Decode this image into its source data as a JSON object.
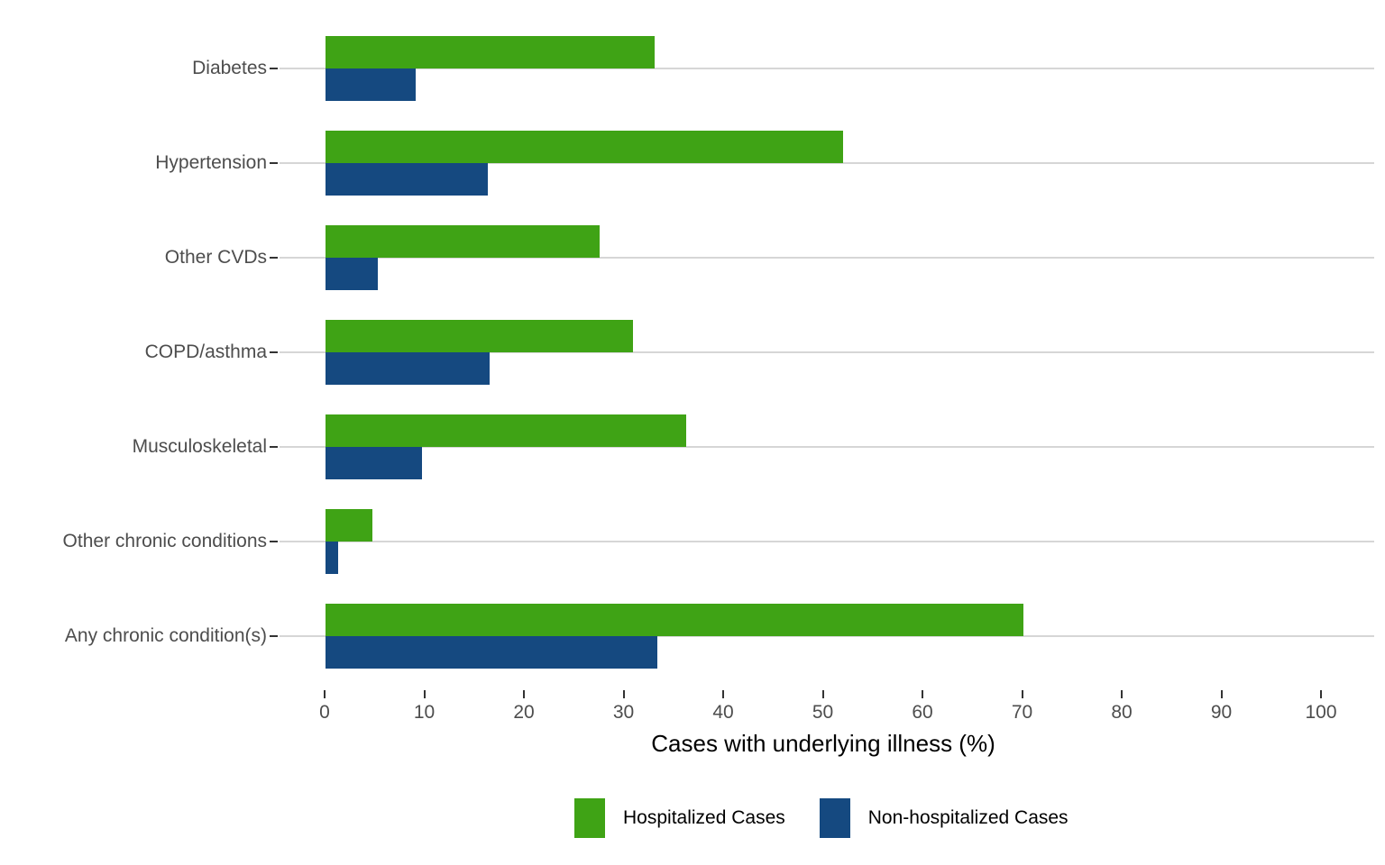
{
  "chart_data": {
    "type": "bar",
    "orientation": "horizontal",
    "title": "",
    "xlabel": "Cases with underlying illness (%)",
    "ylabel": "",
    "xlim": [
      0,
      100
    ],
    "xticks": [
      0,
      10,
      20,
      30,
      40,
      50,
      60,
      70,
      80,
      90,
      100
    ],
    "grid": "horizontal category gridlines only",
    "legend_position": "bottom",
    "categories": [
      "Diabetes",
      "Hypertension",
      "Other CVDs",
      "COPD/asthma",
      "Musculoskeletal",
      "Other chronic conditions",
      "Any chronic condition(s)"
    ],
    "series": [
      {
        "name": "Hospitalized Cases",
        "color": "#3fa315",
        "values": [
          33.0,
          51.9,
          27.5,
          30.9,
          36.2,
          4.7,
          70.0
        ]
      },
      {
        "name": "Non-hospitalized Cases",
        "color": "#154980",
        "values": [
          9.0,
          16.3,
          5.2,
          16.5,
          9.7,
          1.3,
          33.3
        ]
      }
    ]
  },
  "colors": {
    "hospitalized_green": "#3fa315",
    "non_hospitalized_blue": "#154980",
    "gridline": "#d6d6d6",
    "axis_text": "#4d4d4d",
    "tick_mark": "#333333",
    "background": "#ffffff"
  }
}
